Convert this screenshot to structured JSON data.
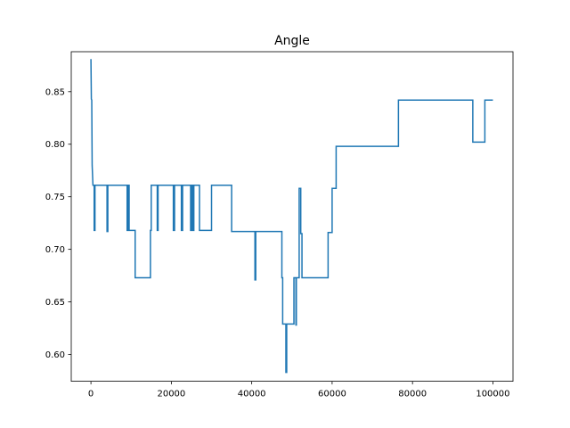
{
  "chart_data": {
    "type": "line",
    "title": "Angle",
    "xlabel": "",
    "ylabel": "",
    "xlim": [
      -4900,
      105000
    ],
    "ylim": [
      0.5745,
      0.888
    ],
    "xticks": [
      0,
      20000,
      40000,
      60000,
      80000,
      100000
    ],
    "yticks": [
      0.6,
      0.65,
      0.7,
      0.75,
      0.8,
      0.85
    ],
    "xtick_labels": [
      "0",
      "20000",
      "40000",
      "60000",
      "80000",
      "100000"
    ],
    "ytick_labels": [
      "0.60",
      "0.65",
      "0.70",
      "0.75",
      "0.80",
      "0.85"
    ],
    "grid": false,
    "line_color": "#1f77b4",
    "series": [
      {
        "x": [
          0,
          100,
          200,
          300,
          500,
          800,
          800,
          1000,
          1000,
          1200,
          1200,
          4000,
          4000,
          4200,
          4200,
          9000,
          9000,
          9200,
          9200,
          9500,
          9500,
          9700,
          9700,
          11000,
          11000,
          14800,
          14800,
          15000,
          15000,
          16500,
          16500,
          16700,
          16700,
          20500,
          20500,
          20800,
          20800,
          21000,
          21000,
          22500,
          22500,
          22800,
          22800,
          24800,
          24800,
          25000,
          25000,
          25300,
          25300,
          25600,
          25600,
          27000,
          27000,
          30000,
          30000,
          35000,
          35000,
          40800,
          40800,
          41000,
          41000,
          47500,
          47500,
          47700,
          47700,
          48500,
          48500,
          48700,
          48700,
          49000,
          49000,
          50500,
          50500,
          51000,
          51000,
          51100,
          51100,
          51800,
          51800,
          52200,
          52200,
          52500,
          52500,
          59000,
          59000,
          60000,
          60000,
          61000,
          61000,
          76500,
          76500,
          95000,
          95000,
          98000,
          98000,
          100000
        ],
        "y": [
          0.881,
          0.843,
          0.842,
          0.78,
          0.761,
          0.761,
          0.718,
          0.718,
          0.761,
          0.761,
          0.761,
          0.761,
          0.717,
          0.717,
          0.761,
          0.761,
          0.718,
          0.718,
          0.761,
          0.761,
          0.718,
          0.718,
          0.718,
          0.718,
          0.673,
          0.673,
          0.718,
          0.718,
          0.761,
          0.761,
          0.718,
          0.718,
          0.761,
          0.761,
          0.718,
          0.718,
          0.761,
          0.761,
          0.761,
          0.761,
          0.718,
          0.718,
          0.761,
          0.761,
          0.718,
          0.718,
          0.761,
          0.761,
          0.718,
          0.718,
          0.761,
          0.761,
          0.718,
          0.718,
          0.761,
          0.761,
          0.717,
          0.717,
          0.671,
          0.671,
          0.717,
          0.717,
          0.673,
          0.673,
          0.629,
          0.629,
          0.583,
          0.583,
          0.629,
          0.629,
          0.629,
          0.629,
          0.673,
          0.673,
          0.628,
          0.628,
          0.673,
          0.673,
          0.758,
          0.758,
          0.715,
          0.715,
          0.673,
          0.673,
          0.716,
          0.716,
          0.758,
          0.758,
          0.798,
          0.798,
          0.842,
          0.842,
          0.802,
          0.802,
          0.842,
          0.842
        ]
      }
    ]
  }
}
